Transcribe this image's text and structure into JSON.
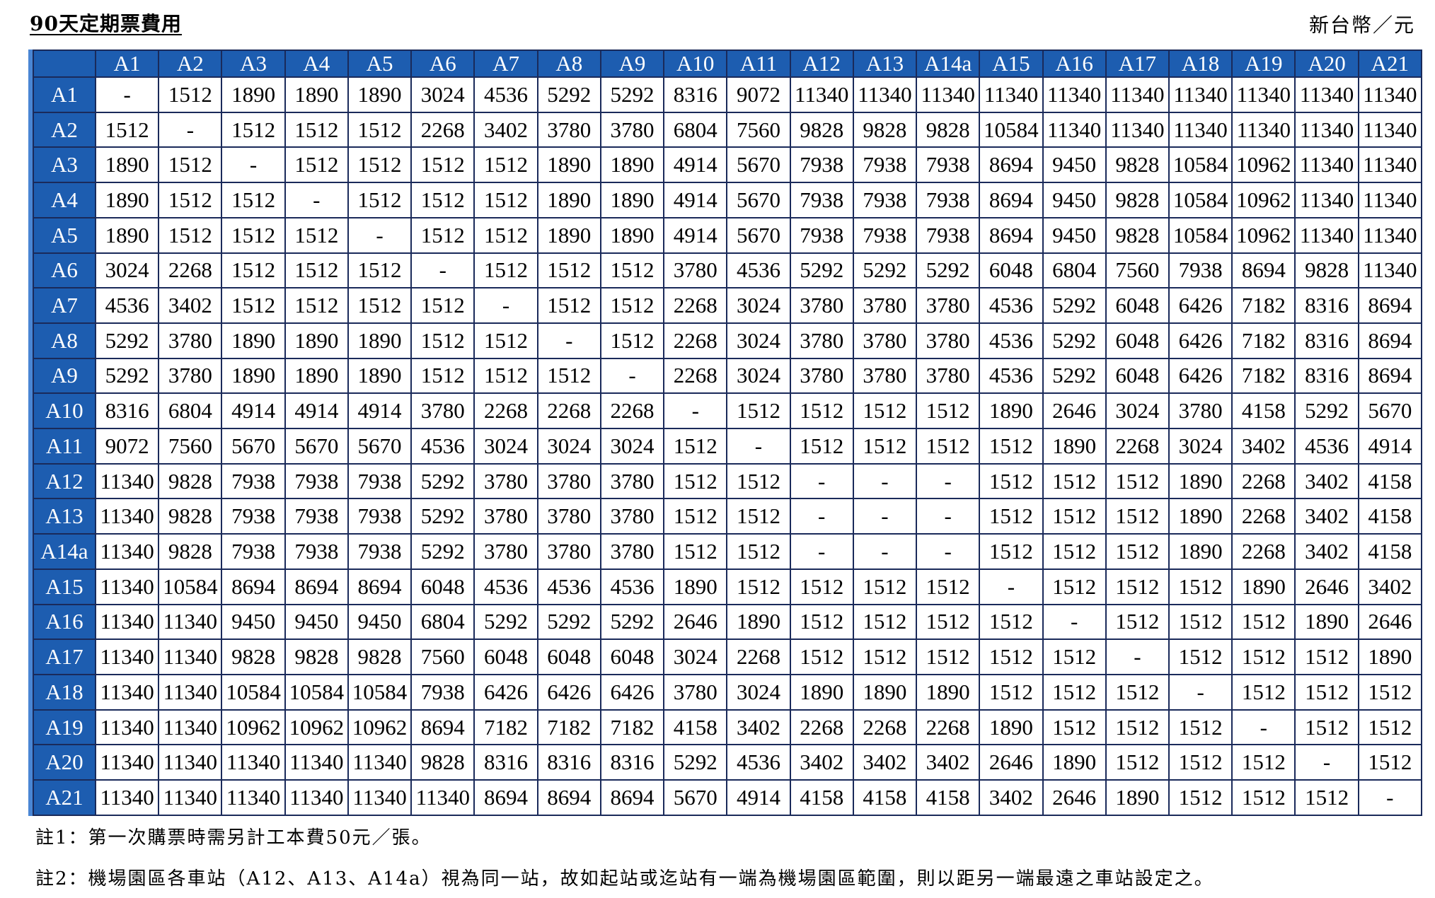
{
  "title": "90天定期票費用",
  "unit": "新台幣／元",
  "table": {
    "columns": [
      "A1",
      "A2",
      "A3",
      "A4",
      "A5",
      "A6",
      "A7",
      "A8",
      "A9",
      "A10",
      "A11",
      "A12",
      "A13",
      "A14a",
      "A15",
      "A16",
      "A17",
      "A18",
      "A19",
      "A20",
      "A21"
    ],
    "rows": [
      {
        "station": "A1",
        "values": [
          "-",
          "1512",
          "1890",
          "1890",
          "1890",
          "3024",
          "4536",
          "5292",
          "5292",
          "8316",
          "9072",
          "11340",
          "11340",
          "11340",
          "11340",
          "11340",
          "11340",
          "11340",
          "11340",
          "11340",
          "11340"
        ]
      },
      {
        "station": "A2",
        "values": [
          "1512",
          "-",
          "1512",
          "1512",
          "1512",
          "2268",
          "3402",
          "3780",
          "3780",
          "6804",
          "7560",
          "9828",
          "9828",
          "9828",
          "10584",
          "11340",
          "11340",
          "11340",
          "11340",
          "11340",
          "11340"
        ]
      },
      {
        "station": "A3",
        "values": [
          "1890",
          "1512",
          "-",
          "1512",
          "1512",
          "1512",
          "1512",
          "1890",
          "1890",
          "4914",
          "5670",
          "7938",
          "7938",
          "7938",
          "8694",
          "9450",
          "9828",
          "10584",
          "10962",
          "11340",
          "11340"
        ]
      },
      {
        "station": "A4",
        "values": [
          "1890",
          "1512",
          "1512",
          "-",
          "1512",
          "1512",
          "1512",
          "1890",
          "1890",
          "4914",
          "5670",
          "7938",
          "7938",
          "7938",
          "8694",
          "9450",
          "9828",
          "10584",
          "10962",
          "11340",
          "11340"
        ]
      },
      {
        "station": "A5",
        "values": [
          "1890",
          "1512",
          "1512",
          "1512",
          "-",
          "1512",
          "1512",
          "1890",
          "1890",
          "4914",
          "5670",
          "7938",
          "7938",
          "7938",
          "8694",
          "9450",
          "9828",
          "10584",
          "10962",
          "11340",
          "11340"
        ]
      },
      {
        "station": "A6",
        "values": [
          "3024",
          "2268",
          "1512",
          "1512",
          "1512",
          "-",
          "1512",
          "1512",
          "1512",
          "3780",
          "4536",
          "5292",
          "5292",
          "5292",
          "6048",
          "6804",
          "7560",
          "7938",
          "8694",
          "9828",
          "11340"
        ]
      },
      {
        "station": "A7",
        "values": [
          "4536",
          "3402",
          "1512",
          "1512",
          "1512",
          "1512",
          "-",
          "1512",
          "1512",
          "2268",
          "3024",
          "3780",
          "3780",
          "3780",
          "4536",
          "5292",
          "6048",
          "6426",
          "7182",
          "8316",
          "8694"
        ]
      },
      {
        "station": "A8",
        "values": [
          "5292",
          "3780",
          "1890",
          "1890",
          "1890",
          "1512",
          "1512",
          "-",
          "1512",
          "2268",
          "3024",
          "3780",
          "3780",
          "3780",
          "4536",
          "5292",
          "6048",
          "6426",
          "7182",
          "8316",
          "8694"
        ]
      },
      {
        "station": "A9",
        "values": [
          "5292",
          "3780",
          "1890",
          "1890",
          "1890",
          "1512",
          "1512",
          "1512",
          "-",
          "2268",
          "3024",
          "3780",
          "3780",
          "3780",
          "4536",
          "5292",
          "6048",
          "6426",
          "7182",
          "8316",
          "8694"
        ]
      },
      {
        "station": "A10",
        "values": [
          "8316",
          "6804",
          "4914",
          "4914",
          "4914",
          "3780",
          "2268",
          "2268",
          "2268",
          "-",
          "1512",
          "1512",
          "1512",
          "1512",
          "1890",
          "2646",
          "3024",
          "3780",
          "4158",
          "5292",
          "5670"
        ]
      },
      {
        "station": "A11",
        "values": [
          "9072",
          "7560",
          "5670",
          "5670",
          "5670",
          "4536",
          "3024",
          "3024",
          "3024",
          "1512",
          "-",
          "1512",
          "1512",
          "1512",
          "1512",
          "1890",
          "2268",
          "3024",
          "3402",
          "4536",
          "4914"
        ]
      },
      {
        "station": "A12",
        "values": [
          "11340",
          "9828",
          "7938",
          "7938",
          "7938",
          "5292",
          "3780",
          "3780",
          "3780",
          "1512",
          "1512",
          "-",
          "-",
          "-",
          "1512",
          "1512",
          "1512",
          "1890",
          "2268",
          "3402",
          "4158"
        ]
      },
      {
        "station": "A13",
        "values": [
          "11340",
          "9828",
          "7938",
          "7938",
          "7938",
          "5292",
          "3780",
          "3780",
          "3780",
          "1512",
          "1512",
          "-",
          "-",
          "-",
          "1512",
          "1512",
          "1512",
          "1890",
          "2268",
          "3402",
          "4158"
        ]
      },
      {
        "station": "A14a",
        "values": [
          "11340",
          "9828",
          "7938",
          "7938",
          "7938",
          "5292",
          "3780",
          "3780",
          "3780",
          "1512",
          "1512",
          "-",
          "-",
          "-",
          "1512",
          "1512",
          "1512",
          "1890",
          "2268",
          "3402",
          "4158"
        ]
      },
      {
        "station": "A15",
        "values": [
          "11340",
          "10584",
          "8694",
          "8694",
          "8694",
          "6048",
          "4536",
          "4536",
          "4536",
          "1890",
          "1512",
          "1512",
          "1512",
          "1512",
          "-",
          "1512",
          "1512",
          "1512",
          "1890",
          "2646",
          "3402"
        ]
      },
      {
        "station": "A16",
        "values": [
          "11340",
          "11340",
          "9450",
          "9450",
          "9450",
          "6804",
          "5292",
          "5292",
          "5292",
          "2646",
          "1890",
          "1512",
          "1512",
          "1512",
          "1512",
          "-",
          "1512",
          "1512",
          "1512",
          "1890",
          "2646"
        ]
      },
      {
        "station": "A17",
        "values": [
          "11340",
          "11340",
          "9828",
          "9828",
          "9828",
          "7560",
          "6048",
          "6048",
          "6048",
          "3024",
          "2268",
          "1512",
          "1512",
          "1512",
          "1512",
          "1512",
          "-",
          "1512",
          "1512",
          "1512",
          "1890"
        ]
      },
      {
        "station": "A18",
        "values": [
          "11340",
          "11340",
          "10584",
          "10584",
          "10584",
          "7938",
          "6426",
          "6426",
          "6426",
          "3780",
          "3024",
          "1890",
          "1890",
          "1890",
          "1512",
          "1512",
          "1512",
          "-",
          "1512",
          "1512",
          "1512"
        ]
      },
      {
        "station": "A19",
        "values": [
          "11340",
          "11340",
          "10962",
          "10962",
          "10962",
          "8694",
          "7182",
          "7182",
          "7182",
          "4158",
          "3402",
          "2268",
          "2268",
          "2268",
          "1890",
          "1512",
          "1512",
          "1512",
          "-",
          "1512",
          "1512"
        ]
      },
      {
        "station": "A20",
        "values": [
          "11340",
          "11340",
          "11340",
          "11340",
          "11340",
          "9828",
          "8316",
          "8316",
          "8316",
          "5292",
          "4536",
          "3402",
          "3402",
          "3402",
          "2646",
          "1890",
          "1512",
          "1512",
          "1512",
          "-",
          "1512"
        ]
      },
      {
        "station": "A21",
        "values": [
          "11340",
          "11340",
          "11340",
          "11340",
          "11340",
          "11340",
          "8694",
          "8694",
          "8694",
          "5670",
          "4914",
          "4158",
          "4158",
          "4158",
          "3402",
          "2646",
          "1890",
          "1512",
          "1512",
          "1512",
          "-"
        ]
      }
    ]
  },
  "notes": [
    "註1：第一次購票時需另計工本費50元／張。",
    "註2：機場園區各車站（A12、A13、A14a）視為同一站，故如起站或迄站有一端為機場園區範圍，則以距另一端最遠之車站設定之。"
  ],
  "colors": {
    "header_bg": "#1d5db0",
    "header_text": "#ffffff",
    "left_accent": "#4a86d4",
    "grid_line": "#1a2a5a"
  }
}
